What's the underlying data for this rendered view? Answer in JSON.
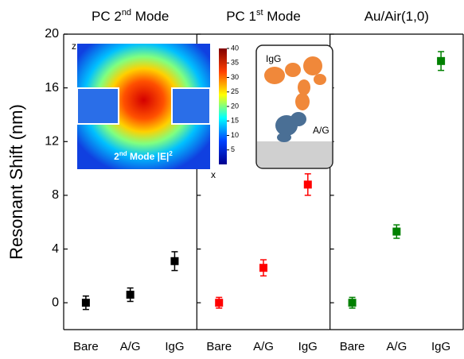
{
  "chart_data": [
    {
      "type": "scatter",
      "title": "PC 2",
      "title_sup": "nd",
      "title_end": " Mode",
      "ylabel": "Resonant Shift (nm)",
      "categories": [
        "Bare",
        "A/G",
        "IgG"
      ],
      "values": [
        0,
        0.6,
        3.1
      ],
      "errors": [
        0.5,
        0.5,
        0.7
      ],
      "color": "#000000",
      "ylim": [
        -2,
        20
      ],
      "yticks": [
        0,
        4,
        8,
        12,
        16,
        20
      ]
    },
    {
      "type": "scatter",
      "title": "PC 1",
      "title_sup": "st",
      "title_end": " Mode",
      "categories": [
        "Bare",
        "A/G",
        "IgG"
      ],
      "values": [
        0,
        2.6,
        8.8
      ],
      "errors": [
        0.4,
        0.6,
        0.8
      ],
      "color": "#ff0000",
      "ylim": [
        -2,
        20
      ],
      "yticks": [
        0,
        4,
        8,
        12,
        16,
        20
      ]
    },
    {
      "type": "scatter",
      "title": "Au/Air(1,0)",
      "categories": [
        "Bare",
        "A/G",
        "IgG"
      ],
      "values": [
        0,
        5.3,
        18
      ],
      "errors": [
        0.4,
        0.5,
        0.7
      ],
      "color": "#008000",
      "ylim": [
        -2,
        20
      ],
      "yticks": [
        0,
        4,
        8,
        12,
        16,
        20
      ]
    }
  ],
  "field_inset": {
    "z_label": "z",
    "x_label": "x",
    "label": [
      "2",
      "nd",
      " Mode |E|",
      "2"
    ],
    "colorbar_lim": [
      0,
      40
    ],
    "colorbar_ticks": [
      5,
      10,
      15,
      20,
      25,
      30,
      35,
      40
    ]
  },
  "molecule_inset": {
    "igg_label": "IgG",
    "ag_label": "A/G"
  }
}
